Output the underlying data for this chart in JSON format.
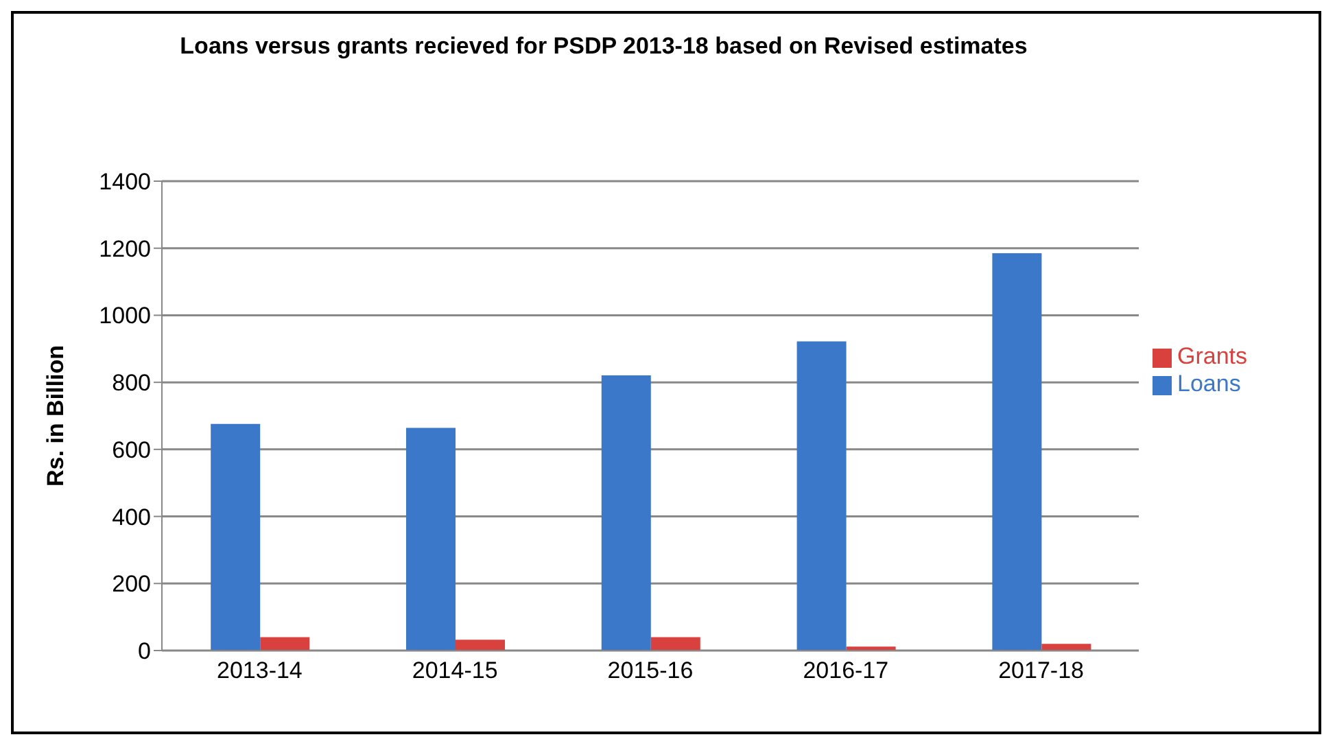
{
  "chart_data": {
    "type": "bar",
    "title": "Loans versus grants recieved for PSDP 2013-18 based on Revised estimates",
    "ylabel": "Rs. in Billion",
    "categories": [
      "2013-14",
      "2014-15",
      "2015-16",
      "2016-17",
      "2017-18"
    ],
    "series": [
      {
        "name": "Loans",
        "color": "#3b78c9",
        "values": [
          676,
          664,
          821,
          922,
          1185
        ]
      },
      {
        "name": "Grants",
        "color": "#d9413e",
        "values": [
          40,
          32,
          40,
          12,
          20
        ]
      }
    ],
    "ylim": [
      0,
      1400
    ],
    "yticks": [
      0,
      200,
      400,
      600,
      800,
      1000,
      1200,
      1400
    ],
    "grid": "y",
    "legend": "right"
  }
}
